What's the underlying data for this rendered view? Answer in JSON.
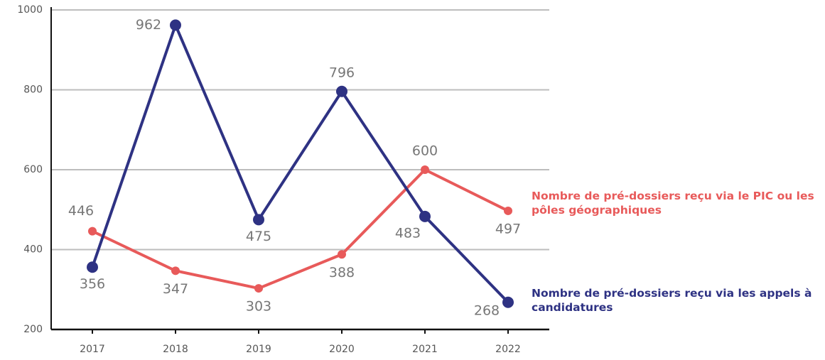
{
  "chart_data": {
    "type": "line",
    "categories": [
      "2017",
      "2018",
      "2019",
      "2020",
      "2021",
      "2022"
    ],
    "series": [
      {
        "name": "Nombre de pré-dossiers reçu via le PIC ou les pôles géographiques",
        "color": "#e85a5a",
        "values": [
          446,
          347,
          303,
          388,
          600,
          497
        ]
      },
      {
        "name": "Nombre de pré-dossiers reçu via les appels à candidatures",
        "color": "#2e3283",
        "values": [
          356,
          962,
          475,
          796,
          483,
          268
        ]
      }
    ],
    "ylim": [
      200,
      1000
    ],
    "yticks": [
      200,
      400,
      600,
      800,
      1000
    ],
    "grid": true
  }
}
